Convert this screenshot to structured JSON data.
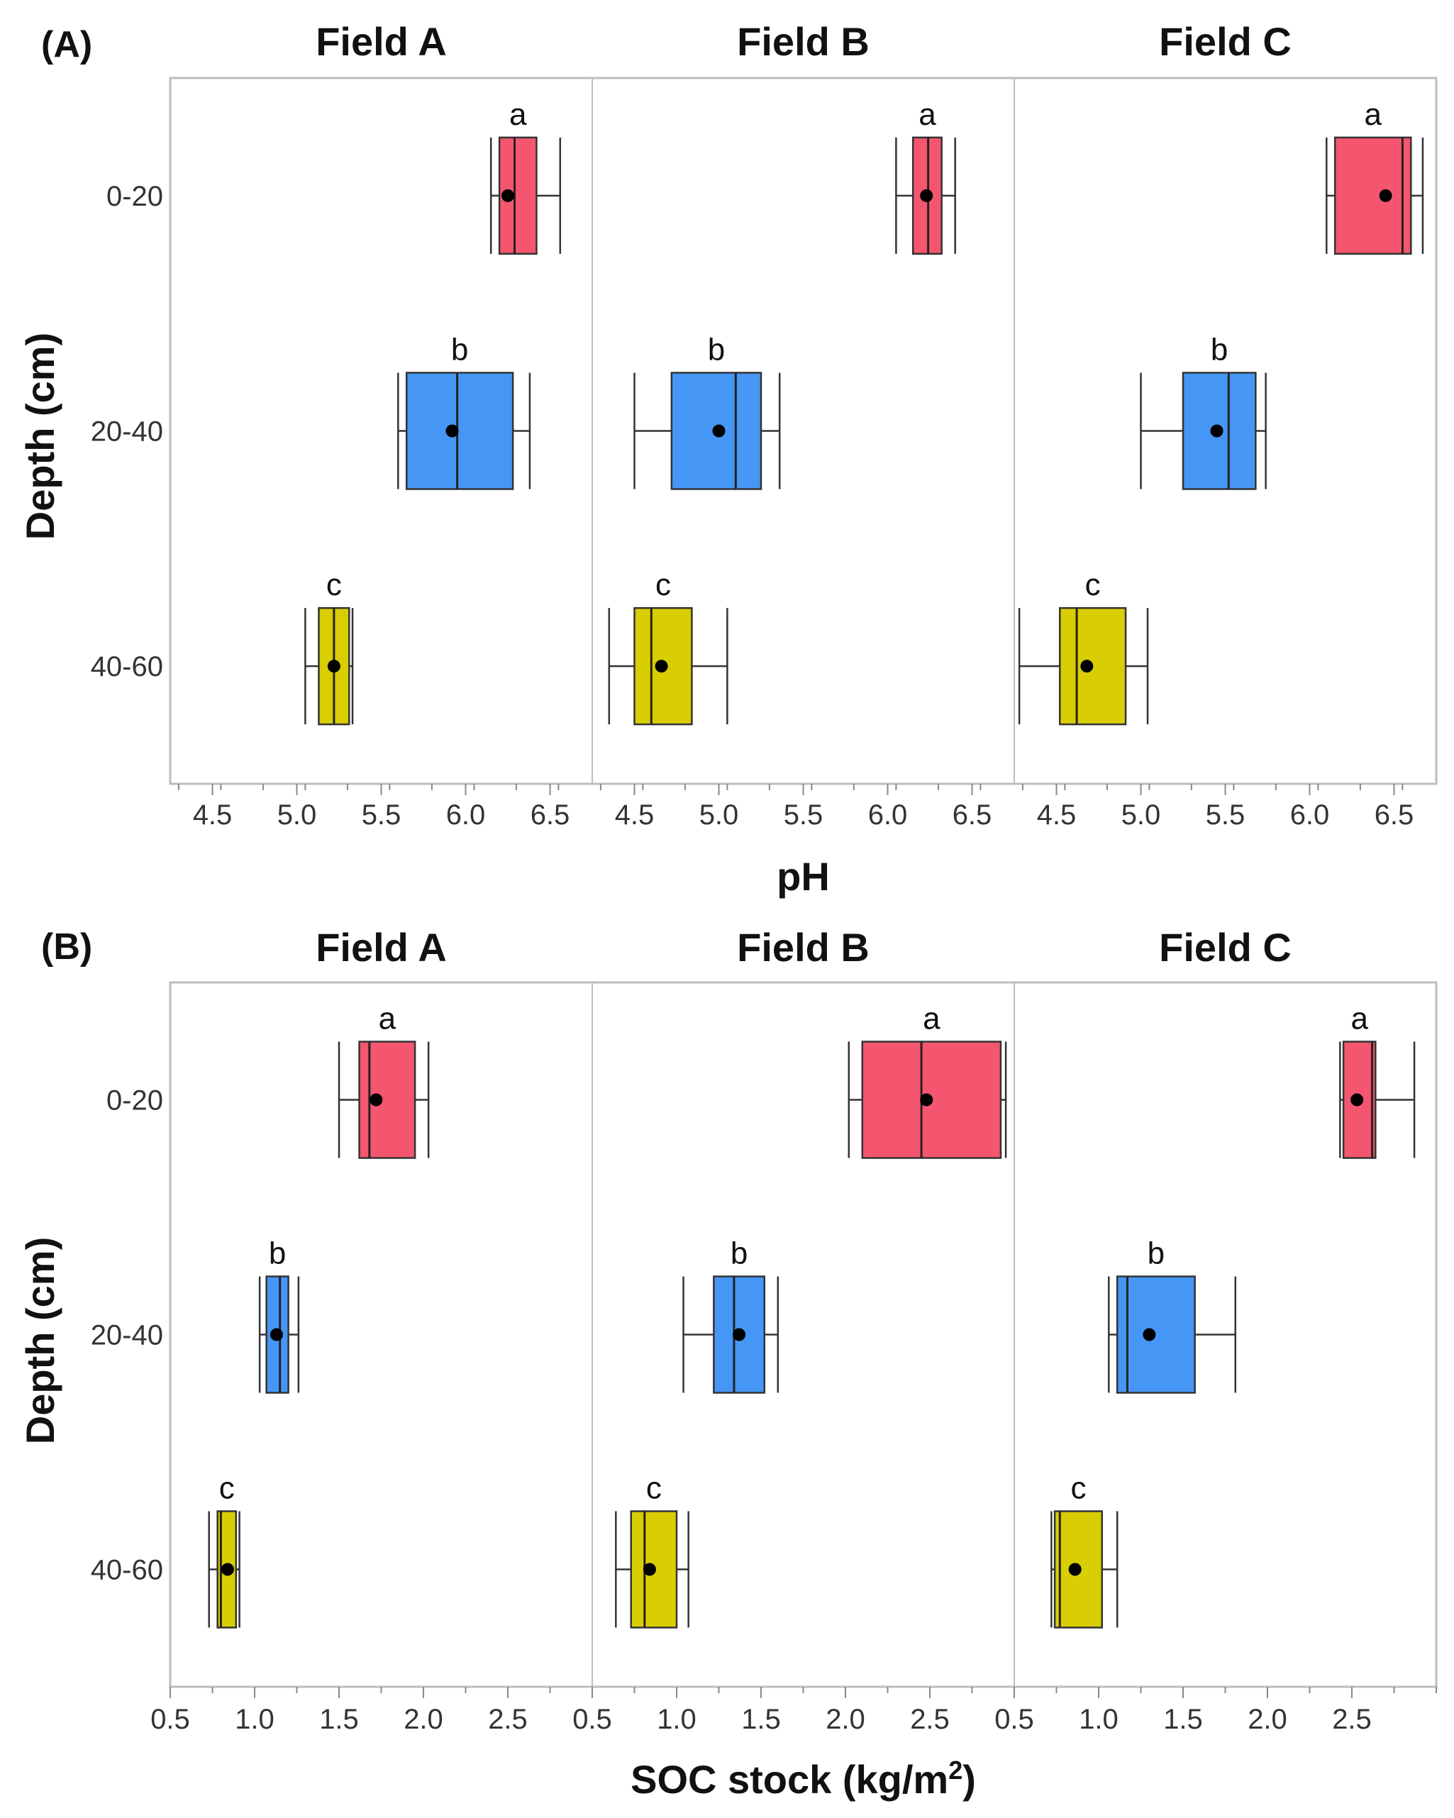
{
  "chart_data": [
    {
      "type": "boxplot",
      "panel_label": "(A)",
      "xlabel": "pH",
      "xlabel_sup": "",
      "xlabel_tail": "",
      "ylabel": "Depth (cm)",
      "categories": [
        "0-20",
        "20-40",
        "40-60"
      ],
      "colors": {
        "0-20": "#f4566f",
        "20-40": "#4596f5",
        "40-60": "#d9cd04"
      },
      "xlim": [
        4.25,
        6.75
      ],
      "xticks": [
        4.5,
        5.0,
        5.5,
        6.0,
        6.5
      ],
      "xtick_labels": [
        "4.5",
        "5.0",
        "5.5",
        "6.0",
        "6.5"
      ],
      "facets": [
        {
          "title": "Field A",
          "boxes": [
            {
              "depth": "0-20",
              "min": 6.15,
              "q1": 6.2,
              "median": 6.29,
              "q3": 6.42,
              "max": 6.56,
              "mean": 6.25,
              "letter": "a"
            },
            {
              "depth": "20-40",
              "min": 5.6,
              "q1": 5.65,
              "median": 5.95,
              "q3": 6.28,
              "max": 6.38,
              "mean": 5.92,
              "letter": "b"
            },
            {
              "depth": "40-60",
              "min": 5.05,
              "q1": 5.13,
              "median": 5.22,
              "q3": 5.31,
              "max": 5.33,
              "mean": 5.22,
              "letter": "c"
            }
          ]
        },
        {
          "title": "Field B",
          "boxes": [
            {
              "depth": "0-20",
              "min": 6.05,
              "q1": 6.15,
              "median": 6.24,
              "q3": 6.32,
              "max": 6.4,
              "mean": 6.23,
              "letter": "a"
            },
            {
              "depth": "20-40",
              "min": 4.5,
              "q1": 4.72,
              "median": 5.1,
              "q3": 5.25,
              "max": 5.36,
              "mean": 5.0,
              "letter": "b"
            },
            {
              "depth": "40-60",
              "min": 4.35,
              "q1": 4.5,
              "median": 4.6,
              "q3": 4.84,
              "max": 5.05,
              "mean": 4.66,
              "letter": "c"
            }
          ]
        },
        {
          "title": "Field C",
          "boxes": [
            {
              "depth": "0-20",
              "min": 6.1,
              "q1": 6.15,
              "median": 6.55,
              "q3": 6.6,
              "max": 6.67,
              "mean": 6.45,
              "letter": "a"
            },
            {
              "depth": "20-40",
              "min": 5.0,
              "q1": 5.25,
              "median": 5.52,
              "q3": 5.68,
              "max": 5.74,
              "mean": 5.45,
              "letter": "b"
            },
            {
              "depth": "40-60",
              "min": 4.28,
              "q1": 4.52,
              "median": 4.62,
              "q3": 4.91,
              "max": 5.04,
              "mean": 4.68,
              "letter": "c"
            }
          ]
        }
      ]
    },
    {
      "type": "boxplot",
      "panel_label": "(B)",
      "xlabel": "SOC stock (kg/m",
      "xlabel_sup": "2",
      "xlabel_tail": ")",
      "ylabel": "Depth (cm)",
      "categories": [
        "0-20",
        "20-40",
        "40-60"
      ],
      "colors": {
        "0-20": "#f4566f",
        "20-40": "#4596f5",
        "40-60": "#d9cd04"
      },
      "xlim": [
        0.5,
        3.0
      ],
      "xticks": [
        0.5,
        1.0,
        1.5,
        2.0,
        2.5
      ],
      "xtick_labels": [
        "0.5",
        "1.0",
        "1.5",
        "2.0",
        "2.5"
      ],
      "facets": [
        {
          "title": "Field A",
          "boxes": [
            {
              "depth": "0-20",
              "min": 1.5,
              "q1": 1.62,
              "median": 1.68,
              "q3": 1.95,
              "max": 2.03,
              "mean": 1.72,
              "letter": "a"
            },
            {
              "depth": "20-40",
              "min": 1.03,
              "q1": 1.07,
              "median": 1.15,
              "q3": 1.2,
              "max": 1.26,
              "mean": 1.13,
              "letter": "b"
            },
            {
              "depth": "40-60",
              "min": 0.73,
              "q1": 0.78,
              "median": 0.8,
              "q3": 0.89,
              "max": 0.91,
              "mean": 0.84,
              "letter": "c"
            }
          ]
        },
        {
          "title": "Field B",
          "boxes": [
            {
              "depth": "0-20",
              "min": 2.02,
              "q1": 2.1,
              "median": 2.45,
              "q3": 2.92,
              "max": 2.95,
              "mean": 2.48,
              "letter": "a"
            },
            {
              "depth": "20-40",
              "min": 1.04,
              "q1": 1.22,
              "median": 1.34,
              "q3": 1.52,
              "max": 1.6,
              "mean": 1.37,
              "letter": "b"
            },
            {
              "depth": "40-60",
              "min": 0.64,
              "q1": 0.73,
              "median": 0.81,
              "q3": 1.0,
              "max": 1.07,
              "mean": 0.84,
              "letter": "c"
            }
          ]
        },
        {
          "title": "Field C",
          "boxes": [
            {
              "depth": "0-20",
              "min": 2.43,
              "q1": 2.45,
              "median": 2.62,
              "q3": 2.64,
              "max": 2.87,
              "mean": 2.53,
              "letter": "a"
            },
            {
              "depth": "20-40",
              "min": 1.06,
              "q1": 1.11,
              "median": 1.17,
              "q3": 1.57,
              "max": 1.81,
              "mean": 1.3,
              "letter": "b"
            },
            {
              "depth": "40-60",
              "min": 0.72,
              "q1": 0.74,
              "median": 0.77,
              "q3": 1.02,
              "max": 1.11,
              "mean": 0.86,
              "letter": "c"
            }
          ]
        }
      ]
    }
  ]
}
